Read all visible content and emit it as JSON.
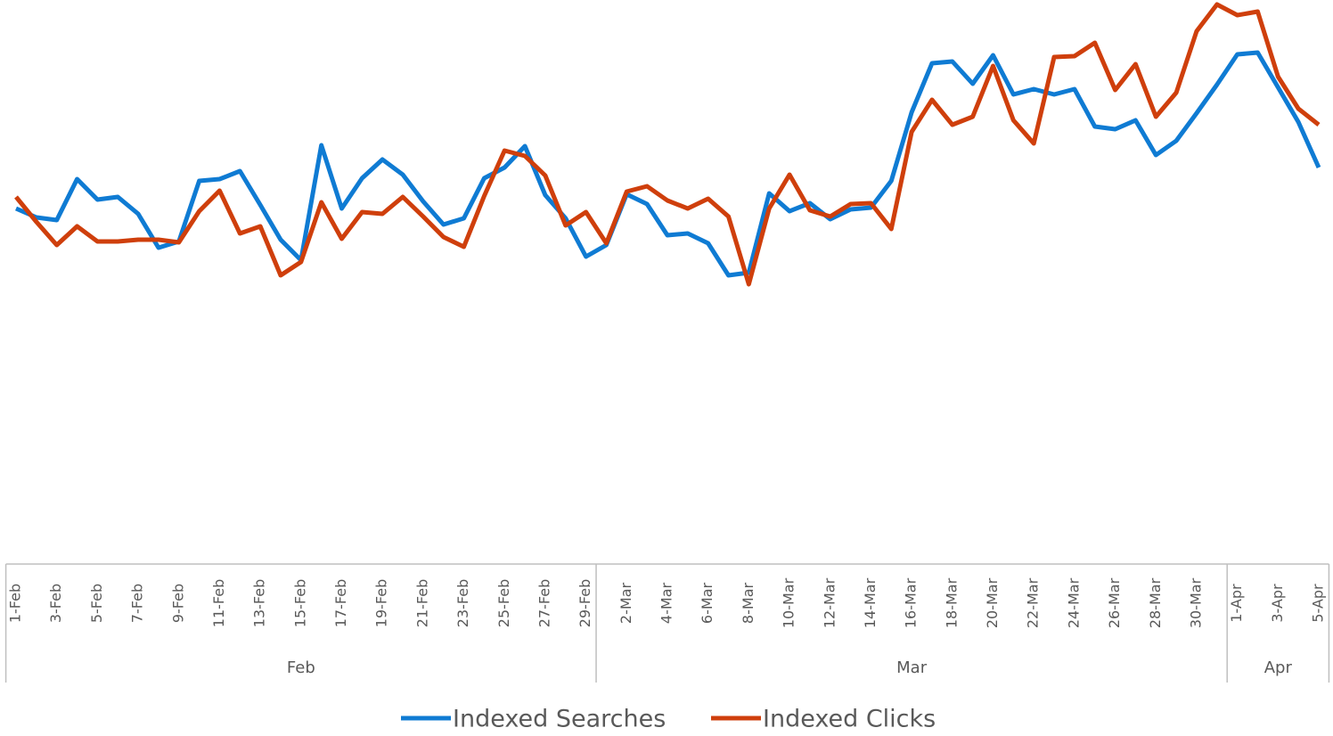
{
  "chart_data": {
    "type": "line",
    "categories": [
      "1-Feb",
      null,
      "3-Feb",
      null,
      "5-Feb",
      null,
      "7-Feb",
      null,
      "9-Feb",
      null,
      "11-Feb",
      null,
      "13-Feb",
      null,
      "15-Feb",
      null,
      "17-Feb",
      null,
      "19-Feb",
      null,
      "21-Feb",
      null,
      "23-Feb",
      null,
      "25-Feb",
      null,
      "27-Feb",
      null,
      "29-Feb",
      null,
      "2-Mar",
      null,
      "4-Mar",
      null,
      "6-Mar",
      null,
      "8-Mar",
      null,
      "10-Mar",
      null,
      "12-Mar",
      null,
      "14-Mar",
      null,
      "16-Mar",
      null,
      "18-Mar",
      null,
      "20-Mar",
      null,
      "22-Mar",
      null,
      "24-Mar",
      null,
      "26-Mar",
      null,
      "28-Mar",
      null,
      "30-Mar",
      null,
      "1-Apr",
      null,
      "3-Apr",
      null,
      "5-Apr"
    ],
    "groups": [
      {
        "name": "Feb",
        "count": 29
      },
      {
        "name": "Mar",
        "count": 31
      },
      {
        "name": "Apr",
        "count": 5
      }
    ],
    "series": [
      {
        "name": "Indexed Searches",
        "color": "#0f7bd3",
        "values": [
          398,
          388,
          385,
          431,
          408,
          411,
          392,
          354,
          361,
          429,
          431,
          440,
          402,
          363,
          340,
          469,
          398,
          432,
          453,
          436,
          406,
          380,
          387,
          432,
          444,
          468,
          413,
          387,
          344,
          357,
          414,
          403,
          368,
          370,
          359,
          323,
          326,
          415,
          395,
          404,
          386,
          397,
          399,
          429,
          506,
          561,
          563,
          538,
          570,
          526,
          532,
          526,
          532,
          490,
          487,
          497,
          458,
          474,
          505,
          537,
          571,
          573,
          534,
          495,
          444
        ]
      },
      {
        "name": "Indexed Clicks",
        "color": "#cf3f0c",
        "values": [
          411,
          383,
          357,
          378,
          361,
          361,
          363,
          363,
          360,
          395,
          418,
          370,
          378,
          323,
          338,
          405,
          364,
          394,
          392,
          411,
          389,
          366,
          355,
          412,
          463,
          457,
          435,
          379,
          394,
          359,
          417,
          423,
          407,
          398,
          409,
          389,
          313,
          398,
          436,
          396,
          389,
          403,
          404,
          375,
          484,
          520,
          492,
          501,
          558,
          497,
          471,
          568,
          569,
          584,
          531,
          560,
          501,
          528,
          597,
          627,
          615,
          619,
          546,
          510,
          492
        ]
      }
    ],
    "ylim": [
      0,
      632
    ],
    "legend": "bottom"
  }
}
